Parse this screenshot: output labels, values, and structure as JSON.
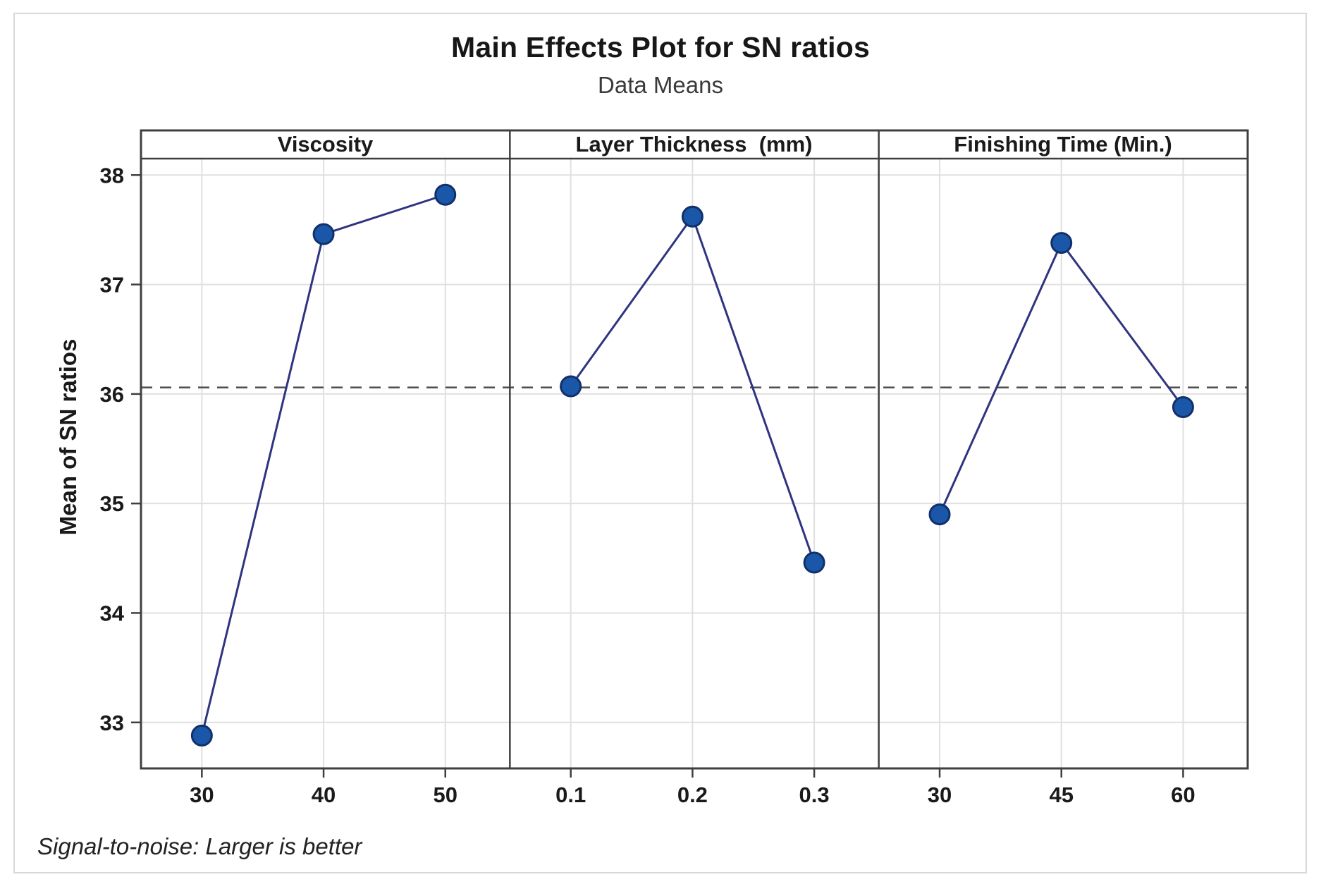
{
  "title": "Main Effects Plot for SN ratios",
  "subtitle": "Data Means",
  "footer_note": "Signal-to-noise: Larger is better",
  "colors": {
    "marker_fill": "#1a57a8",
    "marker_edge": "#12306b",
    "line": "#2f3480",
    "grid": "#e0e0e0",
    "frame": "#3f3f3f",
    "mean_line": "#4d4d4d",
    "text": "#1a1a1a"
  },
  "chart_data": {
    "type": "line",
    "title": "Main Effects Plot for SN ratios",
    "subtitle": "Data Means",
    "ylabel": "Mean of SN ratios",
    "footer": "Signal-to-noise: Larger is better",
    "ylim": [
      32.58,
      38.15
    ],
    "yticks": [
      33,
      34,
      35,
      36,
      37,
      38
    ],
    "mean_line": 36.06,
    "grid": true,
    "legend": false,
    "panels": [
      {
        "label": "Viscosity",
        "categories": [
          "30",
          "40",
          "50"
        ],
        "values": [
          32.88,
          37.46,
          37.82
        ]
      },
      {
        "label": "Layer Thickness  (mm)",
        "categories": [
          "0.1",
          "0.2",
          "0.3"
        ],
        "values": [
          36.07,
          37.62,
          34.46
        ]
      },
      {
        "label": "Finishing Time (Min.)",
        "categories": [
          "30",
          "45",
          "60"
        ],
        "values": [
          34.9,
          37.38,
          35.88
        ]
      }
    ]
  }
}
